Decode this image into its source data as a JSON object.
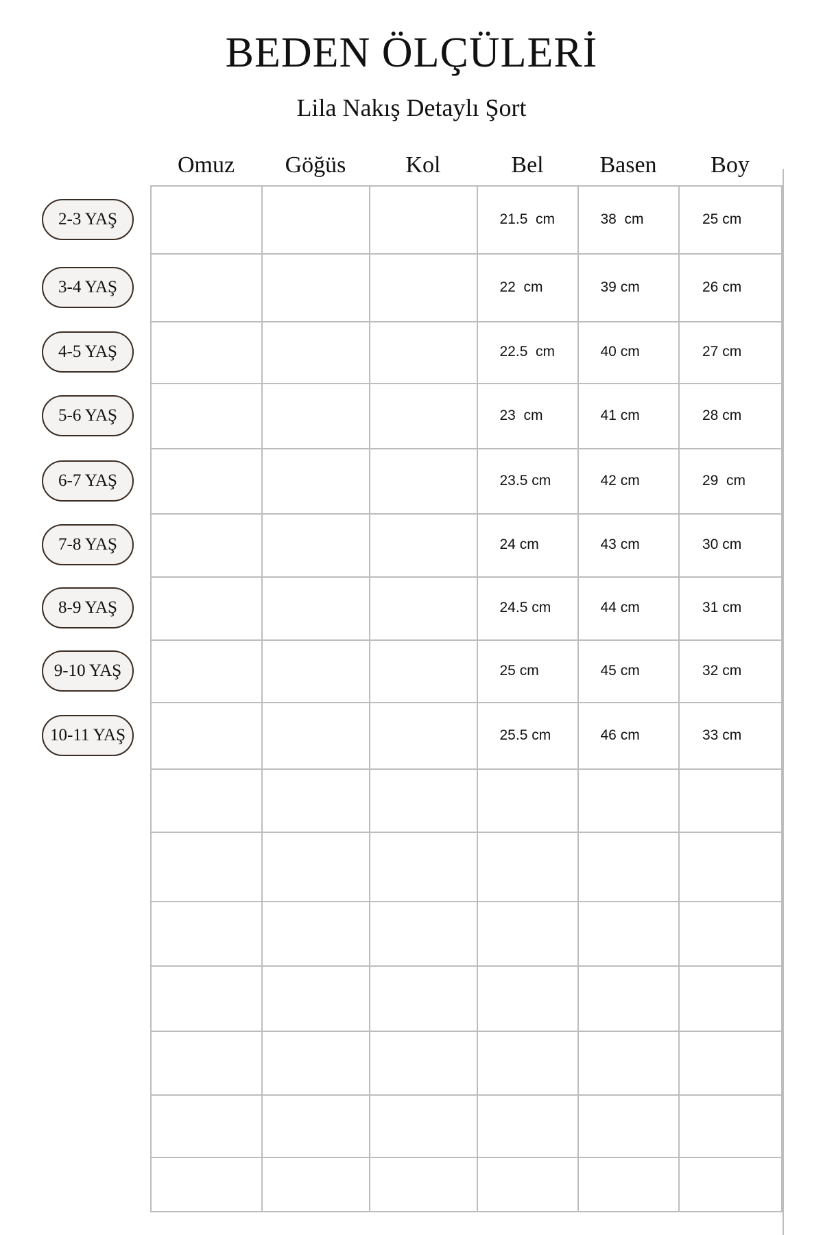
{
  "title": "BEDEN ÖLÇÜLERİ",
  "subtitle": "Lila Nakış Detaylı  Şort",
  "columns": [
    "Omuz",
    "Göğüs",
    "Kol",
    "Bel",
    "Basen",
    "Boy"
  ],
  "rows": [
    {
      "size": "2-3 YAŞ",
      "values": [
        "",
        "",
        "",
        "21.5  cm",
        "38  cm",
        "25 cm"
      ]
    },
    {
      "size": "3-4 YAŞ",
      "values": [
        "",
        "",
        "",
        "22  cm",
        "39 cm",
        "26 cm"
      ]
    },
    {
      "size": "4-5 YAŞ",
      "values": [
        "",
        "",
        "",
        "22.5  cm",
        "40 cm",
        "27 cm"
      ]
    },
    {
      "size": "5-6 YAŞ",
      "values": [
        "",
        "",
        "",
        "23  cm",
        "41 cm",
        "28 cm"
      ]
    },
    {
      "size": "6-7 YAŞ",
      "values": [
        "",
        "",
        "",
        "23.5 cm",
        "42 cm",
        "29  cm"
      ]
    },
    {
      "size": "7-8 YAŞ",
      "values": [
        "",
        "",
        "",
        "24 cm",
        "43 cm",
        "30 cm"
      ]
    },
    {
      "size": "8-9 YAŞ",
      "values": [
        "",
        "",
        "",
        "24.5 cm",
        "44 cm",
        "31 cm"
      ]
    },
    {
      "size": "9-10 YAŞ",
      "values": [
        "",
        "",
        "",
        "25 cm",
        "45 cm",
        "32 cm"
      ]
    },
    {
      "size": "10-11 YAŞ",
      "values": [
        "",
        "",
        "",
        "25.5 cm",
        "46 cm",
        "33 cm"
      ]
    }
  ]
}
